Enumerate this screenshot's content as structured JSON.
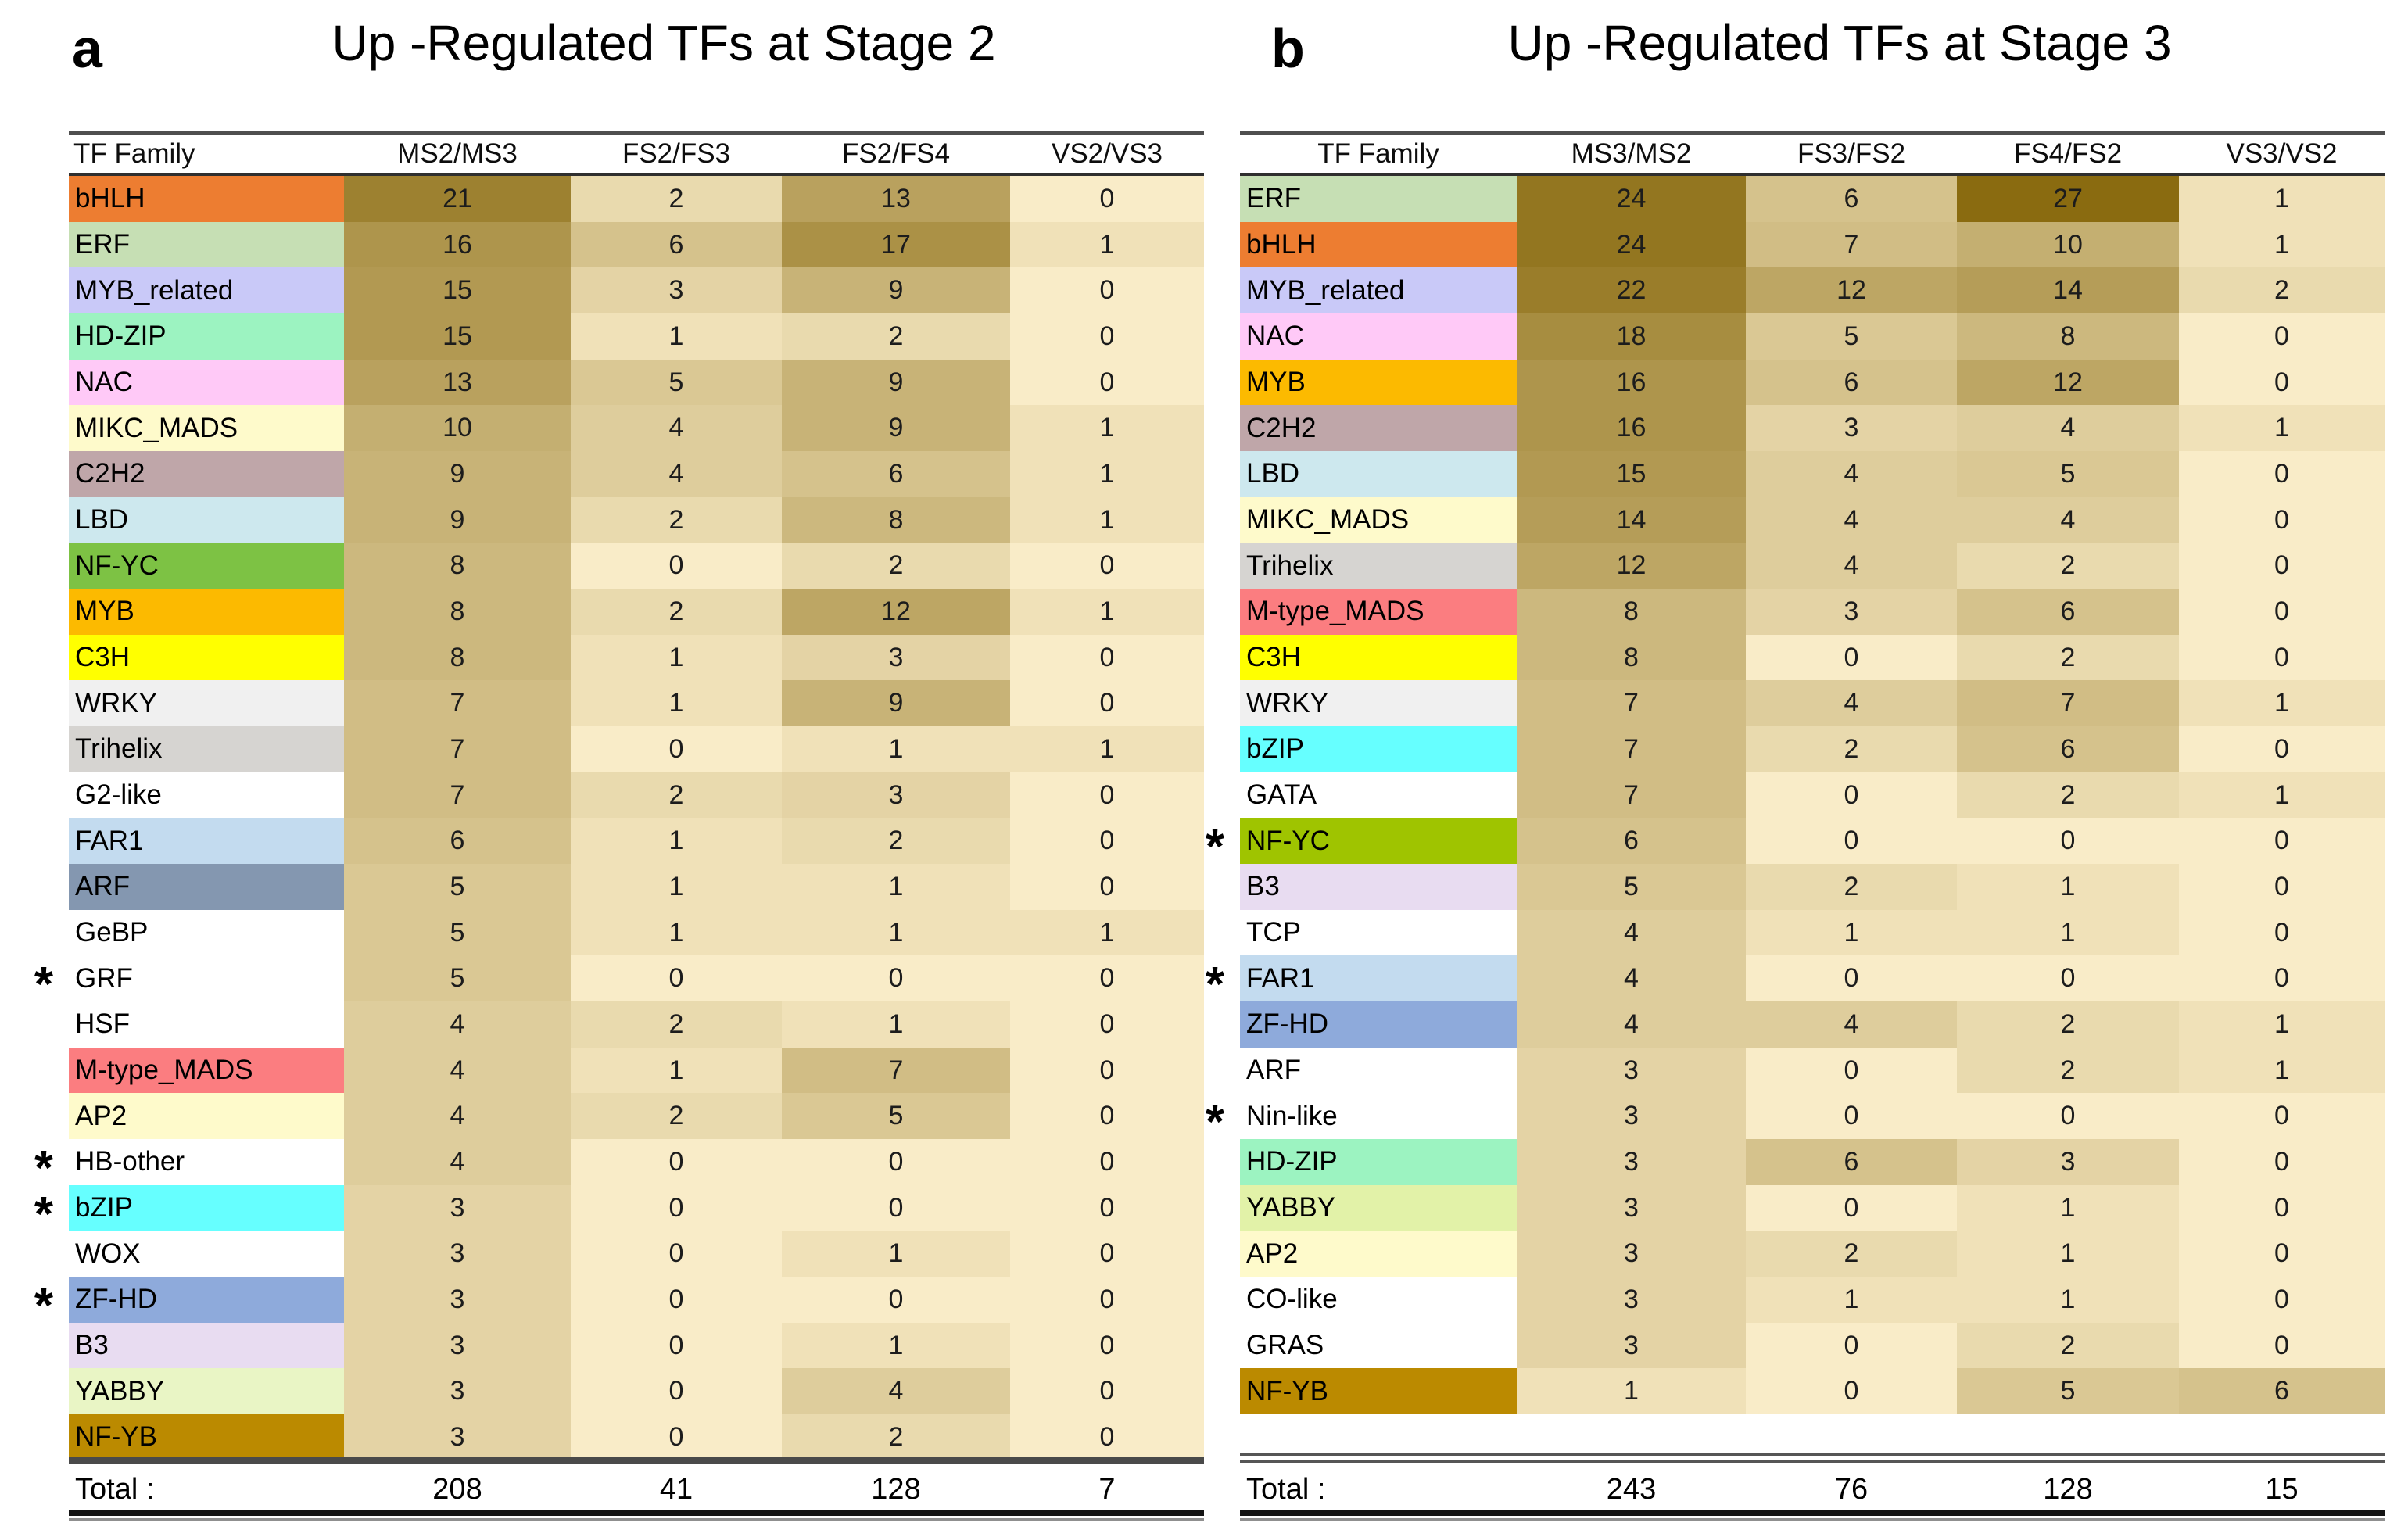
{
  "star_glyph": "*",
  "colormap": {
    "min_color": "#F9ECC8",
    "max_color": "#8A6B10",
    "max_value": 27,
    "gamma": 0.75
  },
  "chart_data": [
    {
      "type": "heatmap",
      "panel_label": "a",
      "title": "Up -Regulated TFs at Stage 2",
      "columns": [
        "TF Family",
        "MS2/MS3",
        "FS2/FS3",
        "FS2/FS4",
        "VS2/VS3"
      ],
      "rows": [
        {
          "family": "bHLH",
          "row_color": "#ED7D31",
          "starred": false,
          "values": [
            21,
            2,
            13,
            0
          ]
        },
        {
          "family": "ERF",
          "row_color": "#C6DFB4",
          "starred": false,
          "values": [
            16,
            6,
            17,
            1
          ]
        },
        {
          "family": "MYB_related",
          "row_color": "#C9C9F8",
          "starred": false,
          "values": [
            15,
            3,
            9,
            0
          ]
        },
        {
          "family": "HD-ZIP",
          "row_color": "#9CF3C1",
          "starred": false,
          "values": [
            15,
            1,
            2,
            0
          ]
        },
        {
          "family": "NAC",
          "row_color": "#FFC9F7",
          "starred": false,
          "values": [
            13,
            5,
            9,
            0
          ]
        },
        {
          "family": "MIKC_MADS",
          "row_color": "#FEFACB",
          "starred": false,
          "values": [
            10,
            4,
            9,
            1
          ]
        },
        {
          "family": "C2H2",
          "row_color": "#BFA6A9",
          "starred": false,
          "values": [
            9,
            4,
            6,
            1
          ]
        },
        {
          "family": "LBD",
          "row_color": "#CDE8EE",
          "starred": false,
          "values": [
            9,
            2,
            8,
            1
          ]
        },
        {
          "family": "NF-YC",
          "row_color": "#7DC244",
          "starred": false,
          "values": [
            8,
            0,
            2,
            0
          ]
        },
        {
          "family": "MYB",
          "row_color": "#FCBA00",
          "starred": false,
          "values": [
            8,
            2,
            12,
            1
          ]
        },
        {
          "family": "C3H",
          "row_color": "#FFFF00",
          "starred": false,
          "values": [
            8,
            1,
            3,
            0
          ]
        },
        {
          "family": "WRKY",
          "row_color": "#F0F0F0",
          "starred": false,
          "values": [
            7,
            1,
            9,
            0
          ]
        },
        {
          "family": "Trihelix",
          "row_color": "#D6D4D1",
          "starred": false,
          "values": [
            7,
            0,
            1,
            1
          ]
        },
        {
          "family": "G2-like",
          "row_color": "#FFFFFF",
          "starred": false,
          "values": [
            7,
            2,
            3,
            0
          ]
        },
        {
          "family": "FAR1",
          "row_color": "#C3DBEF",
          "starred": false,
          "values": [
            6,
            1,
            2,
            0
          ]
        },
        {
          "family": "ARF",
          "row_color": "#8497B0",
          "starred": false,
          "values": [
            5,
            1,
            1,
            0
          ]
        },
        {
          "family": "GeBP",
          "row_color": "#FFFFFF",
          "starred": false,
          "values": [
            5,
            1,
            1,
            1
          ]
        },
        {
          "family": "GRF",
          "row_color": "#FFFFFF",
          "starred": true,
          "values": [
            5,
            0,
            0,
            0
          ]
        },
        {
          "family": "HSF",
          "row_color": "#FFFFFF",
          "starred": false,
          "values": [
            4,
            2,
            1,
            0
          ]
        },
        {
          "family": "M-type_MADS",
          "row_color": "#FB7D80",
          "starred": false,
          "values": [
            4,
            1,
            7,
            0
          ]
        },
        {
          "family": "AP2",
          "row_color": "#FEFACB",
          "starred": false,
          "values": [
            4,
            2,
            5,
            0
          ]
        },
        {
          "family": "HB-other",
          "row_color": "#FFFFFF",
          "starred": true,
          "values": [
            4,
            0,
            0,
            0
          ]
        },
        {
          "family": "bZIP",
          "row_color": "#66FFFF",
          "starred": true,
          "values": [
            3,
            0,
            0,
            0
          ]
        },
        {
          "family": "WOX",
          "row_color": "#FFFFFF",
          "starred": false,
          "values": [
            3,
            0,
            1,
            0
          ]
        },
        {
          "family": "ZF-HD",
          "row_color": "#8EAADB",
          "starred": true,
          "values": [
            3,
            0,
            0,
            0
          ]
        },
        {
          "family": "B3",
          "row_color": "#E8DCF1",
          "starred": false,
          "values": [
            3,
            0,
            1,
            0
          ]
        },
        {
          "family": "YABBY",
          "row_color": "#E9F5C5",
          "starred": false,
          "values": [
            3,
            0,
            4,
            0
          ]
        },
        {
          "family": "NF-YB",
          "row_color": "#BB8A00",
          "starred": false,
          "values": [
            3,
            0,
            2,
            0
          ]
        }
      ],
      "total_label": "Total :",
      "totals": [
        208,
        41,
        128,
        7
      ]
    },
    {
      "type": "heatmap",
      "panel_label": "b",
      "title": "Up -Regulated TFs at Stage 3",
      "columns": [
        "TF Family",
        "MS3/MS2",
        "FS3/FS2",
        "FS4/FS2",
        "VS3/VS2"
      ],
      "rows": [
        {
          "family": "ERF",
          "row_color": "#C6DFB4",
          "starred": false,
          "values": [
            24,
            6,
            27,
            1
          ]
        },
        {
          "family": "bHLH",
          "row_color": "#ED7D31",
          "starred": false,
          "values": [
            24,
            7,
            10,
            1
          ]
        },
        {
          "family": "MYB_related",
          "row_color": "#C9C9F8",
          "starred": false,
          "values": [
            22,
            12,
            14,
            2
          ]
        },
        {
          "family": "NAC",
          "row_color": "#FFC9F7",
          "starred": false,
          "values": [
            18,
            5,
            8,
            0
          ]
        },
        {
          "family": "MYB",
          "row_color": "#FCBA00",
          "starred": false,
          "values": [
            16,
            6,
            12,
            0
          ]
        },
        {
          "family": "C2H2",
          "row_color": "#BFA6A9",
          "starred": false,
          "values": [
            16,
            3,
            4,
            1
          ]
        },
        {
          "family": "LBD",
          "row_color": "#CDE8EE",
          "starred": false,
          "values": [
            15,
            4,
            5,
            0
          ]
        },
        {
          "family": "MIKC_MADS",
          "row_color": "#FEFACB",
          "starred": false,
          "values": [
            14,
            4,
            4,
            0
          ]
        },
        {
          "family": "Trihelix",
          "row_color": "#D6D4D1",
          "starred": false,
          "values": [
            12,
            4,
            2,
            0
          ]
        },
        {
          "family": "M-type_MADS",
          "row_color": "#FB7D80",
          "starred": false,
          "values": [
            8,
            3,
            6,
            0
          ]
        },
        {
          "family": "C3H",
          "row_color": "#FFFF00",
          "starred": false,
          "values": [
            8,
            0,
            2,
            0
          ]
        },
        {
          "family": "WRKY",
          "row_color": "#F0F0F0",
          "starred": false,
          "values": [
            7,
            4,
            7,
            1
          ]
        },
        {
          "family": "bZIP",
          "row_color": "#66FFFF",
          "starred": false,
          "values": [
            7,
            2,
            6,
            0
          ]
        },
        {
          "family": "GATA",
          "row_color": "#FFFFFF",
          "starred": false,
          "values": [
            7,
            0,
            2,
            1
          ]
        },
        {
          "family": "NF-YC",
          "row_color": "#9FC400",
          "starred": true,
          "values": [
            6,
            0,
            0,
            0
          ]
        },
        {
          "family": "B3",
          "row_color": "#E8DCF1",
          "starred": false,
          "values": [
            5,
            2,
            1,
            0
          ]
        },
        {
          "family": "TCP",
          "row_color": "#FFFFFF",
          "starred": false,
          "values": [
            4,
            1,
            1,
            0
          ]
        },
        {
          "family": "FAR1",
          "row_color": "#C3DBEF",
          "starred": true,
          "values": [
            4,
            0,
            0,
            0
          ]
        },
        {
          "family": "ZF-HD",
          "row_color": "#8EAADB",
          "starred": false,
          "values": [
            4,
            4,
            2,
            1
          ]
        },
        {
          "family": "ARF",
          "row_color": "#FFFFFF",
          "starred": false,
          "values": [
            3,
            0,
            2,
            1
          ]
        },
        {
          "family": "Nin-like",
          "row_color": "#FFFFFF",
          "starred": true,
          "values": [
            3,
            0,
            0,
            0
          ]
        },
        {
          "family": "HD-ZIP",
          "row_color": "#9CF3C1",
          "starred": false,
          "values": [
            3,
            6,
            3,
            0
          ]
        },
        {
          "family": "YABBY",
          "row_color": "#E2F2A8",
          "starred": false,
          "values": [
            3,
            0,
            1,
            0
          ]
        },
        {
          "family": "AP2",
          "row_color": "#FEFACB",
          "starred": false,
          "values": [
            3,
            2,
            1,
            0
          ]
        },
        {
          "family": "CO-like",
          "row_color": "#FFFFFF",
          "starred": false,
          "values": [
            3,
            1,
            1,
            0
          ]
        },
        {
          "family": "GRAS",
          "row_color": "#FFFFFF",
          "starred": false,
          "values": [
            3,
            0,
            2,
            0
          ]
        },
        {
          "family": "NF-YB",
          "row_color": "#BB8A00",
          "starred": false,
          "values": [
            1,
            0,
            5,
            6
          ]
        }
      ],
      "total_label": "Total :",
      "totals": [
        243,
        76,
        128,
        15
      ]
    }
  ]
}
